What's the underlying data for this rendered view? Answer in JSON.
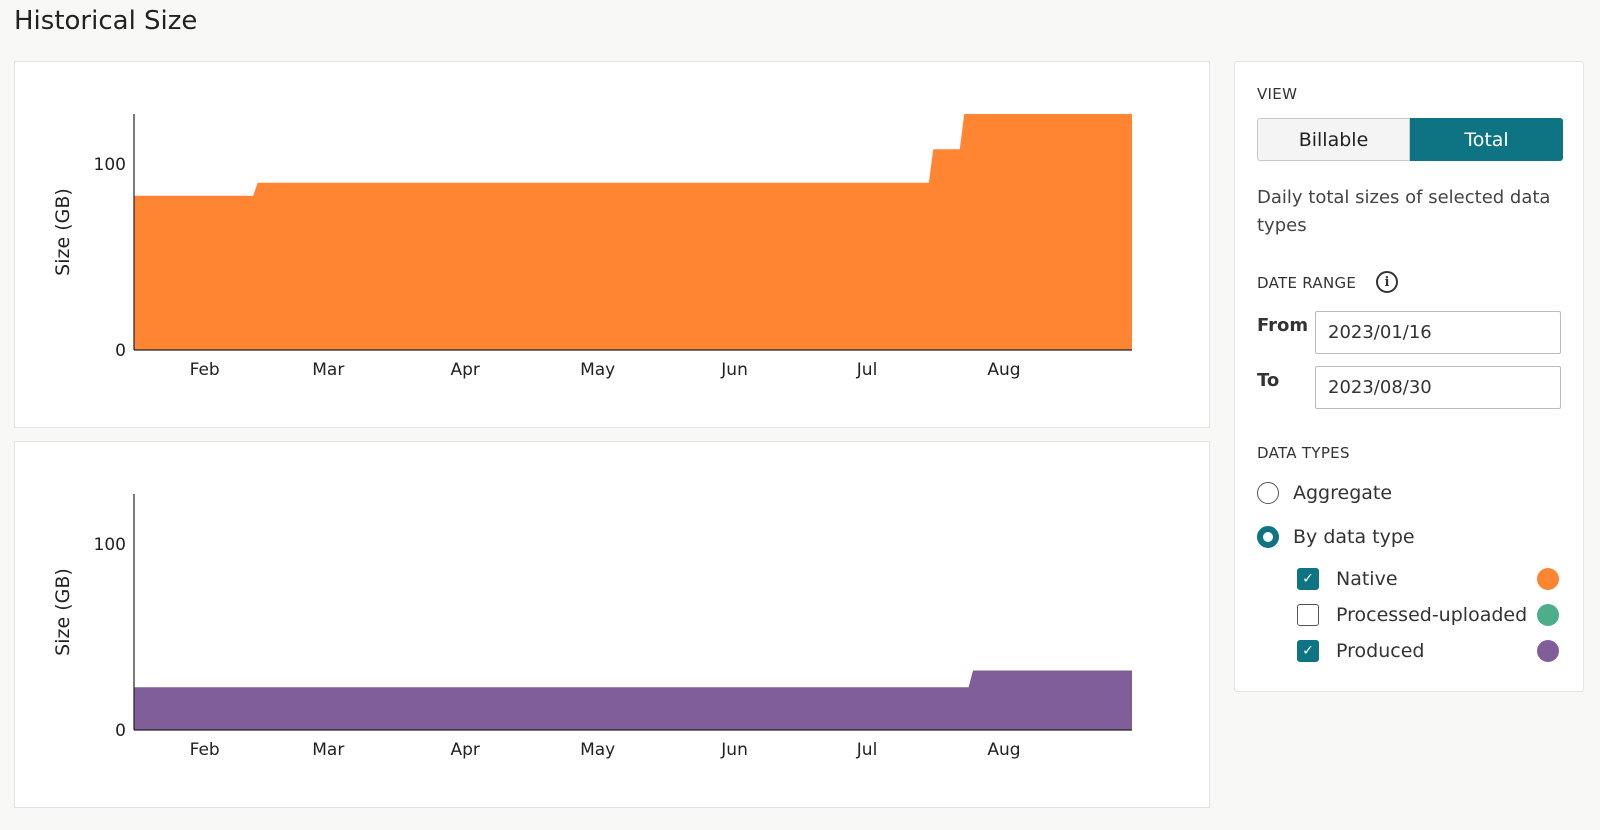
{
  "page": {
    "title": "Historical Size"
  },
  "chart_data": [
    {
      "type": "area",
      "ylabel": "Size (GB)",
      "yticks": [
        0,
        100
      ],
      "ylim": [
        0,
        127
      ],
      "x_ticks": [
        "Feb",
        "Mar",
        "Apr",
        "May",
        "Jun",
        "Jul",
        "Aug"
      ],
      "x_tick_dates": [
        "2023-02-01",
        "2023-03-01",
        "2023-04-01",
        "2023-05-01",
        "2023-06-01",
        "2023-07-01",
        "2023-08-01"
      ],
      "xlim": [
        "2023-01-16",
        "2023-08-30"
      ],
      "series": [
        {
          "color": "#ff8533",
          "x": [
            "2023-01-16",
            "2023-02-12",
            "2023-02-13",
            "2023-07-15",
            "2023-07-16",
            "2023-07-22",
            "2023-07-23",
            "2023-08-30"
          ],
          "y": [
            83,
            83,
            90,
            90,
            108,
            108,
            127,
            127
          ]
        }
      ]
    },
    {
      "type": "area",
      "ylabel": "Size (GB)",
      "yticks": [
        0,
        100
      ],
      "ylim": [
        0,
        127
      ],
      "x_ticks": [
        "Feb",
        "Mar",
        "Apr",
        "May",
        "Jun",
        "Jul",
        "Aug"
      ],
      "x_tick_dates": [
        "2023-02-01",
        "2023-03-01",
        "2023-04-01",
        "2023-05-01",
        "2023-06-01",
        "2023-07-01",
        "2023-08-01"
      ],
      "xlim": [
        "2023-01-16",
        "2023-08-30"
      ],
      "series": [
        {
          "color": "#7f5e9a",
          "x": [
            "2023-01-16",
            "2023-07-24",
            "2023-07-25",
            "2023-08-30"
          ],
          "y": [
            23,
            23,
            32,
            32
          ]
        }
      ]
    }
  ],
  "sidebar": {
    "view_label": "VIEW",
    "view_options": [
      "Billable",
      "Total"
    ],
    "view_selected": "Total",
    "description": "Daily total sizes of selected data types",
    "date_range_label": "DATE RANGE",
    "from_label": "From",
    "from_value": "2023/01/16",
    "to_label": "To",
    "to_value": "2023/08/30",
    "data_types_label": "DATA TYPES",
    "radio_aggregate": "Aggregate",
    "radio_by_type": "By data type",
    "types": [
      {
        "label": "Native",
        "checked": true,
        "color": "#ff8533"
      },
      {
        "label": "Processed-uploaded",
        "checked": false,
        "color": "#4caf8a"
      },
      {
        "label": "Produced",
        "checked": true,
        "color": "#7f5e9a"
      }
    ]
  }
}
